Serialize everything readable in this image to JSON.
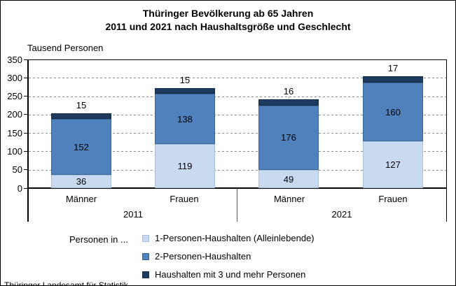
{
  "title": {
    "line1": "Thüringer Bevölkerung ab 65 Jahren",
    "line2": "2011 und 2021 nach Haushaltsgröße und Geschlecht"
  },
  "axis_unit_label": "Tausend Personen",
  "legend": {
    "prefix": "Personen in ..."
  },
  "footer": "Thüringer Landesamt für Statistik",
  "chart_data": {
    "type": "bar",
    "stacked": true,
    "title": "Thüringer Bevölkerung ab 65 Jahren 2011 und 2021 nach Haushaltsgröße und Geschlecht",
    "ylabel": "Tausend Personen",
    "ylim": [
      0,
      350
    ],
    "ytick_step": 50,
    "grid": "horizontal-dashed",
    "grid_color": "#8c8c8c",
    "legend_position": "bottom-left",
    "group_labels": [
      "2011",
      "2021"
    ],
    "categories": [
      "Männer",
      "Frauen",
      "Männer",
      "Frauen"
    ],
    "category_group": [
      "2011",
      "2011",
      "2021",
      "2021"
    ],
    "series": [
      {
        "name": "1-Personen-Haushalten (Alleinlebende)",
        "color": "#c8d9f0",
        "border_color": "#a6c0e0",
        "values": [
          36,
          119,
          49,
          127
        ]
      },
      {
        "name": "2-Personen-Haushalten",
        "color": "#4f81bd",
        "border_color": "#3a6494",
        "values": [
          152,
          138,
          176,
          160
        ]
      },
      {
        "name": "Haushalten mit 3 und mehr Personen",
        "color": "#1f3a5f",
        "border_color": "#152c47",
        "values": [
          15,
          15,
          16,
          17
        ]
      }
    ],
    "above_label_leader_lines": [
      false,
      false,
      true,
      false
    ],
    "bar_totals": [
      203,
      272,
      241,
      304
    ]
  }
}
